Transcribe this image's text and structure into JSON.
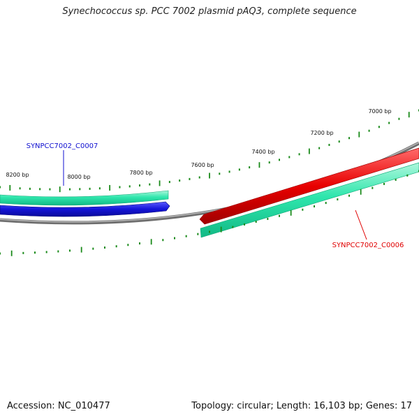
{
  "header": {
    "title": "Synechococcus sp. PCC 7002 plasmid pAQ3, complete sequence"
  },
  "footer": {
    "accession": "Accession: NC_010477",
    "summary": "Topology: circular; Length: 16,103 bp; Genes: 17"
  },
  "plasmid": {
    "topology": "circular",
    "length_bp": 16103,
    "gene_count": 17
  },
  "ruler": {
    "labels": [
      "7000 bp",
      "7200 bp",
      "7400 bp",
      "7600 bp",
      "7800 bp",
      "8000 bp",
      "8200 bp"
    ]
  },
  "genes": [
    {
      "label": "SYNPCC7002_C0007",
      "color": "#1010d0",
      "strand": "forward"
    },
    {
      "label": "SYNPCC7002_C0006",
      "color": "#e00000",
      "strand": "reverse"
    }
  ],
  "colors": {
    "backbone": "#8a8a8a",
    "orf_track": "#1fe0a8",
    "ticks": "#1a8a1a",
    "forward_gene": "#1010d0",
    "reverse_gene": "#e00000"
  }
}
